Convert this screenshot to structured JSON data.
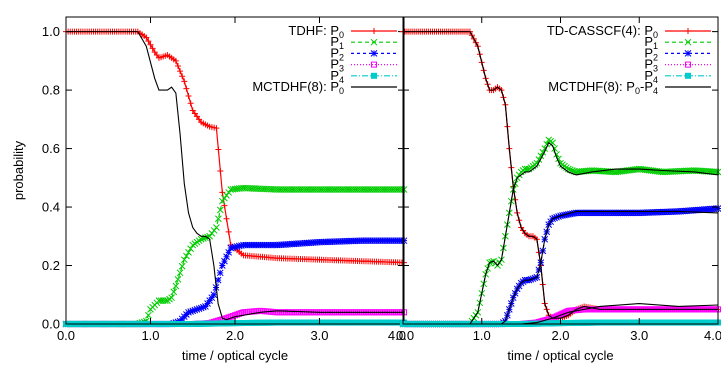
{
  "chart_data": [
    {
      "type": "line",
      "xlabel": "time / optical cycle",
      "ylabel": "probability",
      "xlim": [
        0,
        4
      ],
      "ylim": [
        0,
        1.05
      ],
      "xticks": [
        "0.0",
        "1.0",
        "2.0",
        "3.0",
        "4.0"
      ],
      "yticks": [
        "0.0",
        "0.2",
        "0.4",
        "0.6",
        "0.8",
        "1.0"
      ],
      "grid": false,
      "legend_position": "top-right",
      "series": [
        {
          "name": "P0",
          "legend_prefix": "TDHF: ",
          "color": "#ff0000",
          "marker": "+",
          "dash": "",
          "x": [
            0,
            0.85,
            0.95,
            1.05,
            1.1,
            1.2,
            1.3,
            1.4,
            1.5,
            1.6,
            1.7,
            1.78,
            1.85,
            1.95,
            2.1,
            2.5,
            3.0,
            3.5,
            4.0
          ],
          "y": [
            1.0,
            1.0,
            0.98,
            0.93,
            0.91,
            0.92,
            0.9,
            0.83,
            0.73,
            0.69,
            0.675,
            0.67,
            0.45,
            0.27,
            0.235,
            0.225,
            0.22,
            0.215,
            0.21
          ]
        },
        {
          "name": "P1",
          "legend_prefix": "",
          "color": "#00cc00",
          "marker": "x",
          "dash": "4,3",
          "x": [
            0,
            0.85,
            0.95,
            1.0,
            1.1,
            1.2,
            1.25,
            1.3,
            1.4,
            1.5,
            1.6,
            1.7,
            1.78,
            1.85,
            1.95,
            2.1,
            2.5,
            3.0,
            3.5,
            4.0
          ],
          "y": [
            0,
            0,
            0.01,
            0.05,
            0.08,
            0.08,
            0.09,
            0.13,
            0.22,
            0.27,
            0.29,
            0.3,
            0.33,
            0.42,
            0.46,
            0.465,
            0.46,
            0.46,
            0.46,
            0.46
          ]
        },
        {
          "name": "P2",
          "legend_prefix": "",
          "color": "#0000ff",
          "marker": "*",
          "dash": "3,3",
          "x": [
            0,
            1.25,
            1.35,
            1.45,
            1.55,
            1.65,
            1.75,
            1.85,
            1.95,
            2.1,
            2.5,
            3.0,
            3.5,
            4.0
          ],
          "y": [
            0,
            0,
            0.01,
            0.04,
            0.05,
            0.06,
            0.1,
            0.2,
            0.26,
            0.27,
            0.27,
            0.28,
            0.285,
            0.285
          ]
        },
        {
          "name": "P3",
          "legend_prefix": "",
          "color": "#ff00ff",
          "marker": "sq",
          "dash": "1,2",
          "x": [
            0,
            1.5,
            1.7,
            1.9,
            2.1,
            2.3,
            2.5,
            3.0,
            3.5,
            4.0
          ],
          "y": [
            0,
            0,
            0.003,
            0.02,
            0.04,
            0.045,
            0.04,
            0.04,
            0.04,
            0.04
          ]
        },
        {
          "name": "P4",
          "legend_prefix": "",
          "color": "#00cccc",
          "marker": "fsq",
          "dash": "6,2,1,2",
          "x": [
            0,
            1.5,
            2.0,
            2.5,
            3.0,
            4.0
          ],
          "y": [
            0,
            0,
            0.003,
            0.005,
            0.005,
            0.005
          ]
        },
        {
          "name": "P0",
          "legend_prefix": "MCTDHF(8): ",
          "color": "#000000",
          "marker": "",
          "dash": "",
          "x": [
            0,
            0.85,
            0.95,
            1.05,
            1.1,
            1.2,
            1.25,
            1.3,
            1.35,
            1.4,
            1.45,
            1.5,
            1.55,
            1.6,
            1.65,
            1.7,
            1.75,
            1.8,
            1.85,
            1.9,
            1.95,
            2.0,
            2.1,
            2.3,
            2.5,
            3.0,
            4.0
          ],
          "y": [
            1.0,
            1.0,
            0.95,
            0.84,
            0.8,
            0.8,
            0.81,
            0.79,
            0.65,
            0.48,
            0.38,
            0.33,
            0.31,
            0.3,
            0.3,
            0.29,
            0.2,
            0.07,
            0.02,
            0.015,
            0.02,
            0.025,
            0.03,
            0.04,
            0.045,
            0.04,
            0.04
          ]
        }
      ]
    },
    {
      "type": "line",
      "xlabel": "time / optical cycle",
      "ylabel": "",
      "xlim": [
        0,
        4
      ],
      "ylim": [
        0,
        1.05
      ],
      "xticks": [
        "0.0",
        "1.0",
        "2.0",
        "3.0",
        "4.0"
      ],
      "yticks": [],
      "grid": false,
      "legend_position": "top-right",
      "series": [
        {
          "name": "P0",
          "legend_prefix": "TD-CASSCF(4): ",
          "color": "#ff0000",
          "marker": "+",
          "dash": "",
          "x": [
            0,
            0.85,
            0.95,
            1.05,
            1.1,
            1.15,
            1.2,
            1.25,
            1.3,
            1.35,
            1.4,
            1.45,
            1.5,
            1.55,
            1.6,
            1.65,
            1.7,
            1.75,
            1.8,
            1.85,
            1.9,
            2.0,
            2.1,
            2.2,
            2.3,
            2.5,
            3.0,
            4.0
          ],
          "y": [
            1.0,
            1.0,
            0.95,
            0.84,
            0.8,
            0.8,
            0.81,
            0.8,
            0.75,
            0.6,
            0.47,
            0.38,
            0.33,
            0.31,
            0.3,
            0.3,
            0.29,
            0.2,
            0.07,
            0.03,
            0.02,
            0.02,
            0.03,
            0.05,
            0.06,
            0.05,
            0.05,
            0.05
          ]
        },
        {
          "name": "P1",
          "legend_prefix": "",
          "color": "#00cc00",
          "marker": "x",
          "dash": "4,3",
          "x": [
            0,
            0.85,
            0.95,
            1.05,
            1.1,
            1.15,
            1.2,
            1.25,
            1.3,
            1.35,
            1.4,
            1.45,
            1.5,
            1.55,
            1.6,
            1.7,
            1.8,
            1.85,
            1.9,
            1.95,
            2.0,
            2.1,
            2.2,
            2.4,
            2.7,
            3.0,
            3.3,
            3.7,
            4.0
          ],
          "y": [
            0,
            0,
            0.04,
            0.17,
            0.21,
            0.215,
            0.2,
            0.22,
            0.3,
            0.38,
            0.46,
            0.5,
            0.52,
            0.53,
            0.53,
            0.55,
            0.6,
            0.63,
            0.62,
            0.58,
            0.55,
            0.53,
            0.52,
            0.525,
            0.52,
            0.53,
            0.52,
            0.525,
            0.52
          ]
        },
        {
          "name": "P2",
          "legend_prefix": "",
          "color": "#0000ff",
          "marker": "*",
          "dash": "3,3",
          "x": [
            0,
            1.25,
            1.3,
            1.35,
            1.4,
            1.45,
            1.5,
            1.55,
            1.6,
            1.65,
            1.7,
            1.75,
            1.8,
            1.85,
            1.9,
            2.0,
            2.2,
            2.5,
            3.0,
            3.5,
            4.0
          ],
          "y": [
            0,
            0,
            0.01,
            0.05,
            0.09,
            0.12,
            0.14,
            0.15,
            0.15,
            0.155,
            0.16,
            0.21,
            0.29,
            0.34,
            0.36,
            0.37,
            0.38,
            0.38,
            0.38,
            0.385,
            0.395
          ]
        },
        {
          "name": "P3",
          "legend_prefix": "",
          "color": "#ff00ff",
          "marker": "sq",
          "dash": "1,2",
          "x": [
            0,
            1.5,
            1.7,
            1.9,
            2.1,
            2.3,
            2.5,
            3.0,
            3.5,
            4.0
          ],
          "y": [
            0,
            0,
            0.005,
            0.02,
            0.045,
            0.05,
            0.05,
            0.05,
            0.05,
            0.05
          ]
        },
        {
          "name": "P4",
          "legend_prefix": "",
          "color": "#00cccc",
          "marker": "fsq",
          "dash": "6,2,1,2",
          "x": [
            0,
            1.5,
            2.0,
            2.5,
            3.0,
            4.0
          ],
          "y": [
            0,
            0,
            0.003,
            0.005,
            0.005,
            0.005
          ]
        },
        {
          "name": "P0-P4",
          "legend_prefix": "MCTDHF(8): ",
          "color": "#000000",
          "marker": "",
          "dash": "",
          "x": [
            0,
            0.85,
            0.95,
            1.05,
            1.1,
            1.15,
            1.2,
            1.25,
            1.3,
            1.35,
            1.4,
            1.45,
            1.5,
            1.55,
            1.6,
            1.65,
            1.7,
            1.75,
            1.8,
            1.85,
            1.9,
            2.0,
            2.1,
            2.2,
            2.3,
            2.5,
            3.0,
            4.0
          ],
          "y": [
            1.0,
            1.0,
            0.95,
            0.84,
            0.8,
            0.8,
            0.81,
            0.8,
            0.75,
            0.6,
            0.47,
            0.38,
            0.33,
            0.31,
            0.3,
            0.3,
            0.29,
            0.2,
            0.07,
            0.03,
            0.02,
            0.02,
            0.03,
            0.05,
            0.06,
            0.05,
            0.05,
            0.05
          ]
        },
        {
          "name": "",
          "legend_prefix": "",
          "color": "#000000",
          "marker": "",
          "dash": "",
          "x": [
            0,
            0.85,
            0.95,
            1.05,
            1.1,
            1.15,
            1.2,
            1.25,
            1.3,
            1.35,
            1.4,
            1.45,
            1.5,
            1.55,
            1.6,
            1.7,
            1.8,
            1.85,
            1.9,
            1.95,
            2.0,
            2.1,
            2.2,
            2.4,
            2.7,
            3.0,
            3.3,
            3.7,
            4.0
          ],
          "y": [
            0,
            0,
            0.04,
            0.17,
            0.21,
            0.215,
            0.2,
            0.22,
            0.3,
            0.38,
            0.46,
            0.5,
            0.51,
            0.52,
            0.52,
            0.54,
            0.59,
            0.62,
            0.61,
            0.57,
            0.54,
            0.52,
            0.51,
            0.52,
            0.53,
            0.53,
            0.525,
            0.52,
            0.51
          ]
        },
        {
          "name": "",
          "legend_prefix": "",
          "color": "#000000",
          "marker": "",
          "dash": "",
          "x": [
            0,
            1.25,
            1.3,
            1.35,
            1.4,
            1.45,
            1.5,
            1.55,
            1.6,
            1.65,
            1.7,
            1.75,
            1.8,
            1.85,
            1.9,
            2.0,
            2.2,
            2.5,
            3.0,
            3.5,
            4.0
          ],
          "y": [
            0,
            0,
            0.01,
            0.05,
            0.09,
            0.12,
            0.14,
            0.15,
            0.15,
            0.155,
            0.16,
            0.21,
            0.29,
            0.34,
            0.36,
            0.37,
            0.385,
            0.385,
            0.385,
            0.385,
            0.38
          ]
        },
        {
          "name": "",
          "legend_prefix": "",
          "color": "#000000",
          "marker": "",
          "dash": "",
          "x": [
            0,
            1.5,
            1.7,
            1.9,
            2.1,
            2.3,
            2.5,
            3.0,
            3.5,
            4.0
          ],
          "y": [
            0,
            0,
            0.005,
            0.02,
            0.04,
            0.05,
            0.06,
            0.07,
            0.06,
            0.065
          ]
        }
      ]
    }
  ]
}
